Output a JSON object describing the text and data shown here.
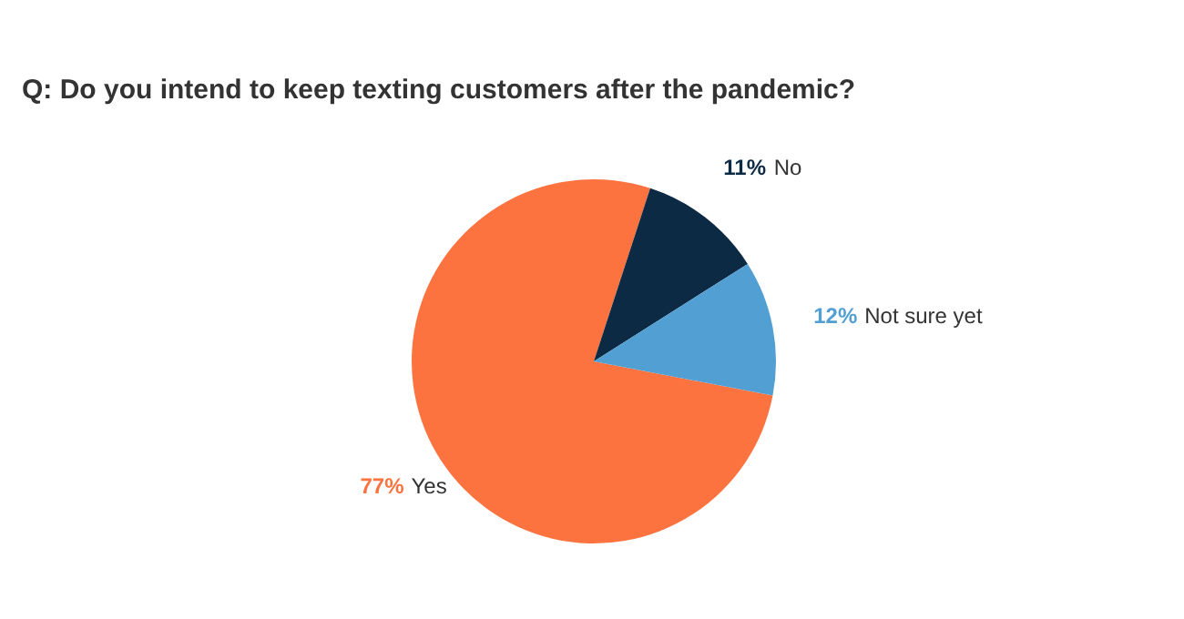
{
  "chart_data": {
    "type": "pie",
    "title": "Q: Do you intend to keep texting customers after the pandemic?",
    "categories": [
      "Yes",
      "No",
      "Not sure yet"
    ],
    "values": [
      77,
      11,
      12
    ],
    "value_labels": [
      "77%",
      "11%",
      "12%"
    ],
    "colors": [
      "#fc7340",
      "#0c2a44",
      "#529fd4"
    ],
    "legend": false
  }
}
